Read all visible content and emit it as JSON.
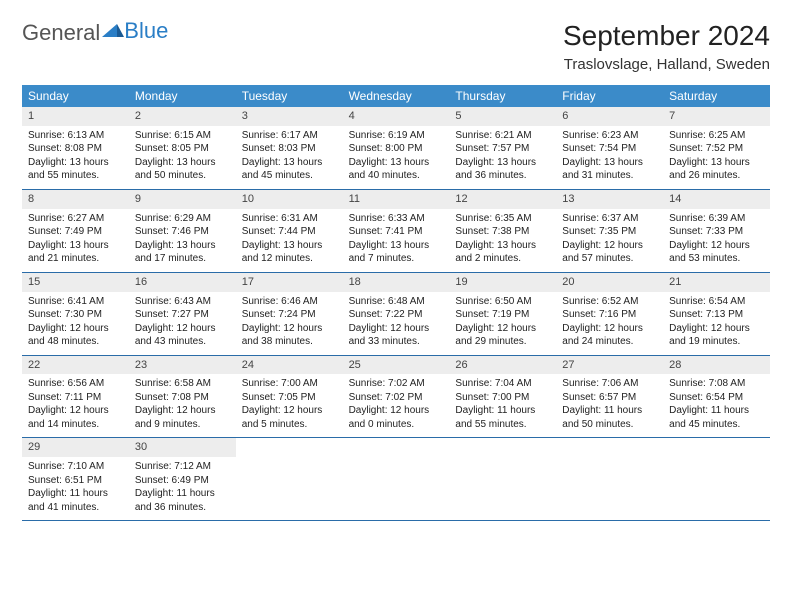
{
  "logo": {
    "text1": "General",
    "text2": "Blue"
  },
  "title": "September 2024",
  "location": "Traslovslage, Halland, Sweden",
  "colors": {
    "header_bg": "#3b8bc9",
    "header_text": "#ffffff",
    "daynum_bg": "#ededed",
    "week_border": "#2a6ca8",
    "logo_gray": "#555555",
    "logo_blue": "#2a7ec6"
  },
  "day_names": [
    "Sunday",
    "Monday",
    "Tuesday",
    "Wednesday",
    "Thursday",
    "Friday",
    "Saturday"
  ],
  "weeks": [
    [
      {
        "n": "1",
        "sr": "Sunrise: 6:13 AM",
        "ss": "Sunset: 8:08 PM",
        "dl": "Daylight: 13 hours and 55 minutes."
      },
      {
        "n": "2",
        "sr": "Sunrise: 6:15 AM",
        "ss": "Sunset: 8:05 PM",
        "dl": "Daylight: 13 hours and 50 minutes."
      },
      {
        "n": "3",
        "sr": "Sunrise: 6:17 AM",
        "ss": "Sunset: 8:03 PM",
        "dl": "Daylight: 13 hours and 45 minutes."
      },
      {
        "n": "4",
        "sr": "Sunrise: 6:19 AM",
        "ss": "Sunset: 8:00 PM",
        "dl": "Daylight: 13 hours and 40 minutes."
      },
      {
        "n": "5",
        "sr": "Sunrise: 6:21 AM",
        "ss": "Sunset: 7:57 PM",
        "dl": "Daylight: 13 hours and 36 minutes."
      },
      {
        "n": "6",
        "sr": "Sunrise: 6:23 AM",
        "ss": "Sunset: 7:54 PM",
        "dl": "Daylight: 13 hours and 31 minutes."
      },
      {
        "n": "7",
        "sr": "Sunrise: 6:25 AM",
        "ss": "Sunset: 7:52 PM",
        "dl": "Daylight: 13 hours and 26 minutes."
      }
    ],
    [
      {
        "n": "8",
        "sr": "Sunrise: 6:27 AM",
        "ss": "Sunset: 7:49 PM",
        "dl": "Daylight: 13 hours and 21 minutes."
      },
      {
        "n": "9",
        "sr": "Sunrise: 6:29 AM",
        "ss": "Sunset: 7:46 PM",
        "dl": "Daylight: 13 hours and 17 minutes."
      },
      {
        "n": "10",
        "sr": "Sunrise: 6:31 AM",
        "ss": "Sunset: 7:44 PM",
        "dl": "Daylight: 13 hours and 12 minutes."
      },
      {
        "n": "11",
        "sr": "Sunrise: 6:33 AM",
        "ss": "Sunset: 7:41 PM",
        "dl": "Daylight: 13 hours and 7 minutes."
      },
      {
        "n": "12",
        "sr": "Sunrise: 6:35 AM",
        "ss": "Sunset: 7:38 PM",
        "dl": "Daylight: 13 hours and 2 minutes."
      },
      {
        "n": "13",
        "sr": "Sunrise: 6:37 AM",
        "ss": "Sunset: 7:35 PM",
        "dl": "Daylight: 12 hours and 57 minutes."
      },
      {
        "n": "14",
        "sr": "Sunrise: 6:39 AM",
        "ss": "Sunset: 7:33 PM",
        "dl": "Daylight: 12 hours and 53 minutes."
      }
    ],
    [
      {
        "n": "15",
        "sr": "Sunrise: 6:41 AM",
        "ss": "Sunset: 7:30 PM",
        "dl": "Daylight: 12 hours and 48 minutes."
      },
      {
        "n": "16",
        "sr": "Sunrise: 6:43 AM",
        "ss": "Sunset: 7:27 PM",
        "dl": "Daylight: 12 hours and 43 minutes."
      },
      {
        "n": "17",
        "sr": "Sunrise: 6:46 AM",
        "ss": "Sunset: 7:24 PM",
        "dl": "Daylight: 12 hours and 38 minutes."
      },
      {
        "n": "18",
        "sr": "Sunrise: 6:48 AM",
        "ss": "Sunset: 7:22 PM",
        "dl": "Daylight: 12 hours and 33 minutes."
      },
      {
        "n": "19",
        "sr": "Sunrise: 6:50 AM",
        "ss": "Sunset: 7:19 PM",
        "dl": "Daylight: 12 hours and 29 minutes."
      },
      {
        "n": "20",
        "sr": "Sunrise: 6:52 AM",
        "ss": "Sunset: 7:16 PM",
        "dl": "Daylight: 12 hours and 24 minutes."
      },
      {
        "n": "21",
        "sr": "Sunrise: 6:54 AM",
        "ss": "Sunset: 7:13 PM",
        "dl": "Daylight: 12 hours and 19 minutes."
      }
    ],
    [
      {
        "n": "22",
        "sr": "Sunrise: 6:56 AM",
        "ss": "Sunset: 7:11 PM",
        "dl": "Daylight: 12 hours and 14 minutes."
      },
      {
        "n": "23",
        "sr": "Sunrise: 6:58 AM",
        "ss": "Sunset: 7:08 PM",
        "dl": "Daylight: 12 hours and 9 minutes."
      },
      {
        "n": "24",
        "sr": "Sunrise: 7:00 AM",
        "ss": "Sunset: 7:05 PM",
        "dl": "Daylight: 12 hours and 5 minutes."
      },
      {
        "n": "25",
        "sr": "Sunrise: 7:02 AM",
        "ss": "Sunset: 7:02 PM",
        "dl": "Daylight: 12 hours and 0 minutes."
      },
      {
        "n": "26",
        "sr": "Sunrise: 7:04 AM",
        "ss": "Sunset: 7:00 PM",
        "dl": "Daylight: 11 hours and 55 minutes."
      },
      {
        "n": "27",
        "sr": "Sunrise: 7:06 AM",
        "ss": "Sunset: 6:57 PM",
        "dl": "Daylight: 11 hours and 50 minutes."
      },
      {
        "n": "28",
        "sr": "Sunrise: 7:08 AM",
        "ss": "Sunset: 6:54 PM",
        "dl": "Daylight: 11 hours and 45 minutes."
      }
    ],
    [
      {
        "n": "29",
        "sr": "Sunrise: 7:10 AM",
        "ss": "Sunset: 6:51 PM",
        "dl": "Daylight: 11 hours and 41 minutes."
      },
      {
        "n": "30",
        "sr": "Sunrise: 7:12 AM",
        "ss": "Sunset: 6:49 PM",
        "dl": "Daylight: 11 hours and 36 minutes."
      },
      null,
      null,
      null,
      null,
      null
    ]
  ]
}
